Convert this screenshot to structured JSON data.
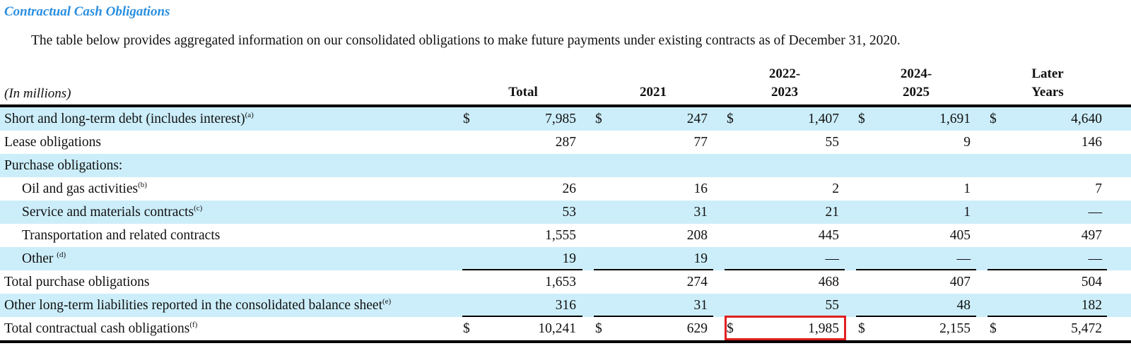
{
  "title": "Contractual Cash Obligations",
  "intro": "The table below provides aggregated information on our consolidated obligations to make future payments under existing contracts as of December 31, 2020.",
  "table": {
    "units": "(In millions)",
    "columns": [
      "Total",
      "2021",
      "2022-\n2023",
      "2024-\n2025",
      "Later\nYears"
    ],
    "rows": [
      {
        "label": "Short and long-term debt (includes interest)",
        "note": "(a)",
        "values": [
          "7,985",
          "247",
          "1,407",
          "1,691",
          "4,640"
        ],
        "dollar": true
      },
      {
        "label": "Lease obligations",
        "note": "",
        "values": [
          "287",
          "77",
          "55",
          "9",
          "146"
        ]
      },
      {
        "label": "Purchase obligations:",
        "note": "",
        "values": [
          "",
          "",
          "",
          "",
          ""
        ]
      },
      {
        "label": "Oil and gas activities",
        "note": "(b)",
        "values": [
          "26",
          "16",
          "2",
          "1",
          "7"
        ],
        "indent": true
      },
      {
        "label": "Service and materials contracts",
        "note": "(c)",
        "values": [
          "53",
          "31",
          "21",
          "1",
          "—"
        ],
        "indent": true
      },
      {
        "label": "Transportation and related contracts",
        "note": "",
        "values": [
          "1,555",
          "208",
          "445",
          "405",
          "497"
        ],
        "indent": true
      },
      {
        "label": "Other ",
        "note": "(d)",
        "values": [
          "19",
          "19",
          "—",
          "—",
          "—"
        ],
        "indent": true,
        "underline": true
      },
      {
        "label": "Total purchase obligations",
        "note": "",
        "values": [
          "1,653",
          "274",
          "468",
          "407",
          "504"
        ]
      },
      {
        "label": "Other long-term liabilities reported in the consolidated balance sheet",
        "note": "(e)",
        "values": [
          "316",
          "31",
          "55",
          "48",
          "182"
        ],
        "underline": true
      },
      {
        "label": "Total contractual cash obligations",
        "note": "(f)",
        "values": [
          "10,241",
          "629",
          "1,985",
          "2,155",
          "5,472"
        ],
        "dollar": true,
        "last": true
      }
    ],
    "currency_symbol": "$"
  },
  "highlight_color": "#e02020",
  "shade_color": "#cceefa",
  "title_color": "#2a8fe0"
}
